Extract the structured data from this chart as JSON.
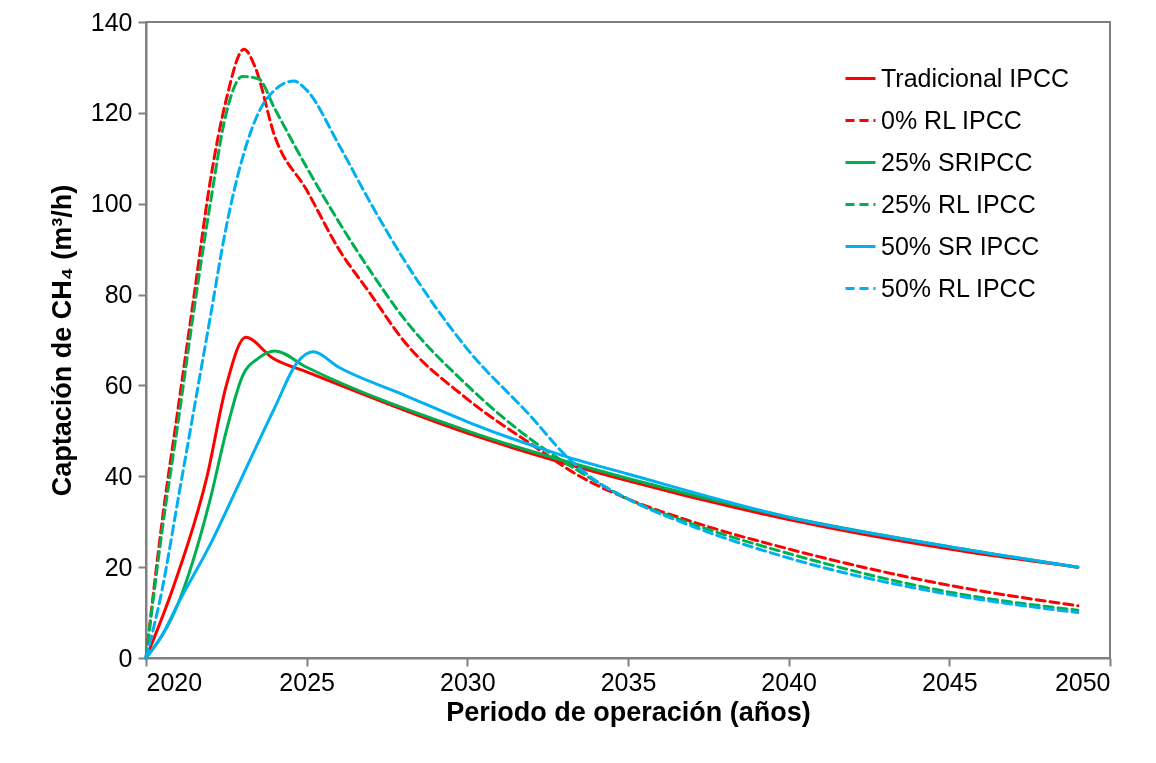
{
  "chart_data": {
    "type": "line",
    "xlabel": "Periodo de operación (años)",
    "ylabel": "Captación de CH₄ (m³/h)",
    "xlim": [
      2020,
      2050
    ],
    "xticks": [
      2020,
      2025,
      2030,
      2035,
      2040,
      2045,
      2050
    ],
    "ylim": [
      0,
      140
    ],
    "yticks": [
      0,
      20,
      40,
      60,
      80,
      100,
      120,
      140
    ],
    "grid": false,
    "legend": "top right",
    "marker": "none",
    "series": [
      {
        "name": "Tradicional IPCC",
        "color": "#ff0000",
        "line_style": "solid",
        "x": [
          2020,
          2020.84,
          2021.9,
          2022.5,
          2023.1,
          2023.95,
          2025,
          2030,
          2035,
          2040,
          2045,
          2049
        ],
        "values": [
          0,
          15.4,
          40,
          60,
          70.6,
          66,
          63,
          49.5,
          39,
          30.5,
          24,
          20
        ]
      },
      {
        "name": "0% RL IPCC",
        "color": "#ff0000",
        "line_style": "dashed",
        "x": [
          2020,
          2020.5,
          2021,
          2021.5,
          2022,
          2022.5,
          2023.05,
          2023.4,
          2024,
          2025,
          2026,
          2027,
          2028,
          2030,
          2032,
          2033.5,
          2035,
          2037,
          2040,
          2045,
          2049
        ],
        "values": [
          0,
          30,
          55,
          80,
          105,
          123,
          134,
          130,
          115,
          103,
          90,
          80,
          70,
          57,
          47,
          40,
          35,
          30,
          24,
          16,
          11.5
        ]
      },
      {
        "name": "25% SRIPCC",
        "color": "#00b050",
        "line_style": "solid",
        "x": [
          2020,
          2021,
          2022,
          2022.5,
          2023,
          2023.5,
          2024,
          2025,
          2030,
          2035,
          2040,
          2045,
          2049
        ],
        "values": [
          0,
          12,
          35,
          50,
          62,
          66,
          67.6,
          64,
          50,
          39.5,
          31,
          24.5,
          20
        ]
      },
      {
        "name": "25% RL IPCC",
        "color": "#00b050",
        "line_style": "dashed",
        "x": [
          2020,
          2020.5,
          2021,
          2021.5,
          2022,
          2022.5,
          2023,
          2023.5,
          2024,
          2025,
          2026,
          2027,
          2028,
          2030,
          2032,
          2033.5,
          2035,
          2037,
          2040,
          2045,
          2049
        ],
        "values": [
          0,
          28,
          52,
          77,
          100,
          120,
          128,
          127.5,
          121,
          108,
          96,
          85,
          75,
          60,
          48,
          41,
          35,
          29.5,
          23,
          14.5,
          10.5
        ]
      },
      {
        "name": "50% SR IPCC",
        "color": "#00b0f0",
        "line_style": "solid",
        "x": [
          2020,
          2020.5,
          2021,
          2022,
          2023,
          2024,
          2024.7,
          2025.2,
          2026,
          2028,
          2030,
          2033,
          2035,
          2040,
          2045,
          2049
        ],
        "values": [
          0,
          5,
          12,
          25,
          40,
          55,
          65,
          67.4,
          64,
          58,
          52,
          44.5,
          40.5,
          31,
          24.5,
          20
        ]
      },
      {
        "name": "50% RL IPCC",
        "color": "#00b0f0",
        "line_style": "dashed",
        "x": [
          2020,
          2020.5,
          2021,
          2021.5,
          2022,
          2022.5,
          2023,
          2023.5,
          2024,
          2024.6,
          2025,
          2026,
          2027,
          2028,
          2030,
          2032,
          2033,
          2034,
          2035,
          2037,
          2040,
          2045,
          2049
        ],
        "values": [
          0,
          15,
          35,
          55,
          75,
          95,
          110,
          120,
          125,
          127,
          125,
          113,
          100,
          88,
          68,
          53,
          45,
          39,
          35,
          29,
          22,
          14,
          10
        ]
      }
    ]
  }
}
